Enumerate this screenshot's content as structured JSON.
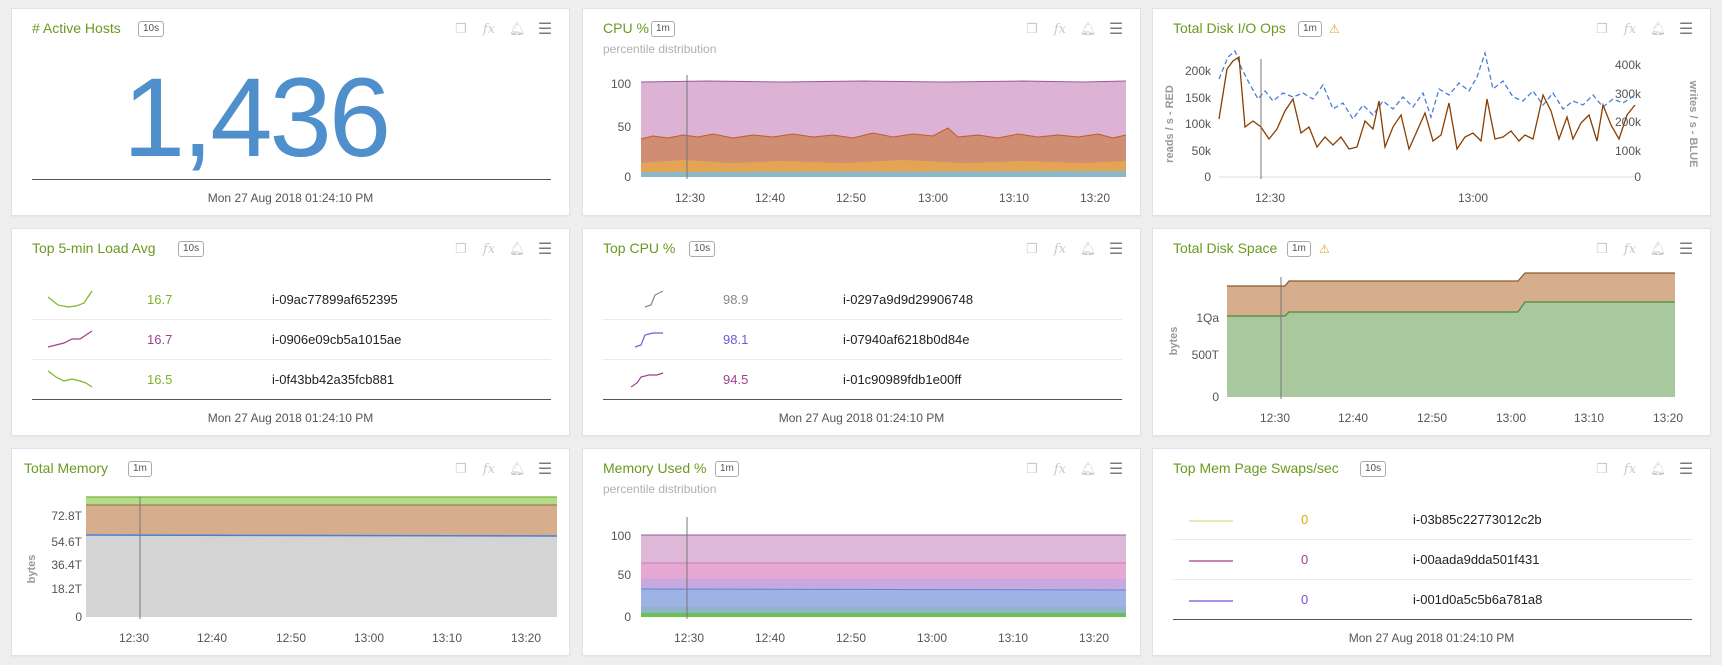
{
  "footer_time": "Mon 27 Aug 2018 01:24:10 PM",
  "panels": {
    "active_hosts": {
      "title": "# Active Hosts",
      "badge": "10s",
      "value": "1,436"
    },
    "cpu": {
      "title": "CPU %",
      "badge": "1m",
      "subtitle": "percentile distribution",
      "ylabels": [
        "100",
        "50",
        "0"
      ],
      "xlabels": [
        "12:30",
        "12:40",
        "12:50",
        "13:00",
        "13:10",
        "13:20"
      ]
    },
    "disk_io": {
      "title": "Total Disk I/O Ops",
      "badge": "1m",
      "left_axis_title": "reads / s - RED",
      "right_axis_title": "writes / s - BLUE",
      "ylabels_left": [
        "200k",
        "150k",
        "100k",
        "50k",
        "0"
      ],
      "ylabels_right": [
        "400k",
        "300k",
        "200k",
        "100k",
        "0"
      ],
      "xlabels": [
        "12:30",
        "13:00"
      ]
    },
    "top_load": {
      "title": "Top 5-min Load Avg",
      "badge": "10s",
      "rows": [
        {
          "value": "16.7",
          "host": "i-09ac77899af652395",
          "color": "#7ab527"
        },
        {
          "value": "16.7",
          "host": "i-0906e09cb5a1015ae",
          "color": "#a23f8f"
        },
        {
          "value": "16.5",
          "host": "i-0f43bb42a35fcb881",
          "color": "#7ab527"
        }
      ]
    },
    "top_cpu": {
      "title": "Top CPU %",
      "badge": "10s",
      "rows": [
        {
          "value": "98.9",
          "host": "i-0297a9d9d29906748",
          "color": "#888888"
        },
        {
          "value": "98.1",
          "host": "i-07940af6218b0d84e",
          "color": "#6e5cd6"
        },
        {
          "value": "94.5",
          "host": "i-01c90989fdb1e00ff",
          "color": "#a23f8f"
        }
      ]
    },
    "disk_space": {
      "title": "Total Disk Space",
      "badge": "1m",
      "axis_title": "bytes",
      "ylabels": [
        "1Qa",
        "500T",
        "0"
      ],
      "xlabels": [
        "12:30",
        "12:40",
        "12:50",
        "13:00",
        "13:10",
        "13:20"
      ]
    },
    "total_memory": {
      "title": "Total Memory",
      "badge": "1m",
      "axis_title": "bytes",
      "ylabels": [
        "72.8T",
        "54.6T",
        "36.4T",
        "18.2T",
        "0"
      ],
      "xlabels": [
        "12:30",
        "12:40",
        "12:50",
        "13:00",
        "13:10",
        "13:20"
      ]
    },
    "memory_used": {
      "title": "Memory Used %",
      "badge": "1m",
      "subtitle": "percentile distribution",
      "ylabels": [
        "100",
        "50",
        "0"
      ],
      "xlabels": [
        "12:30",
        "12:40",
        "12:50",
        "13:00",
        "13:10",
        "13:20"
      ]
    },
    "mem_swaps": {
      "title": "Top Mem Page Swaps/sec",
      "badge": "10s",
      "rows": [
        {
          "value": "0",
          "host": "i-03b85c22773012c2b",
          "color": "#e0a800"
        },
        {
          "value": "0",
          "host": "i-00aada9dda501f431",
          "color": "#a23f8f"
        },
        {
          "value": "0",
          "host": "i-001d0a5c5b6a781a8",
          "color": "#7b4fd6"
        }
      ]
    }
  },
  "icons": [
    "copy-icon",
    "fx-icon",
    "bell-icon",
    "menu-icon",
    "warning-icon"
  ]
}
